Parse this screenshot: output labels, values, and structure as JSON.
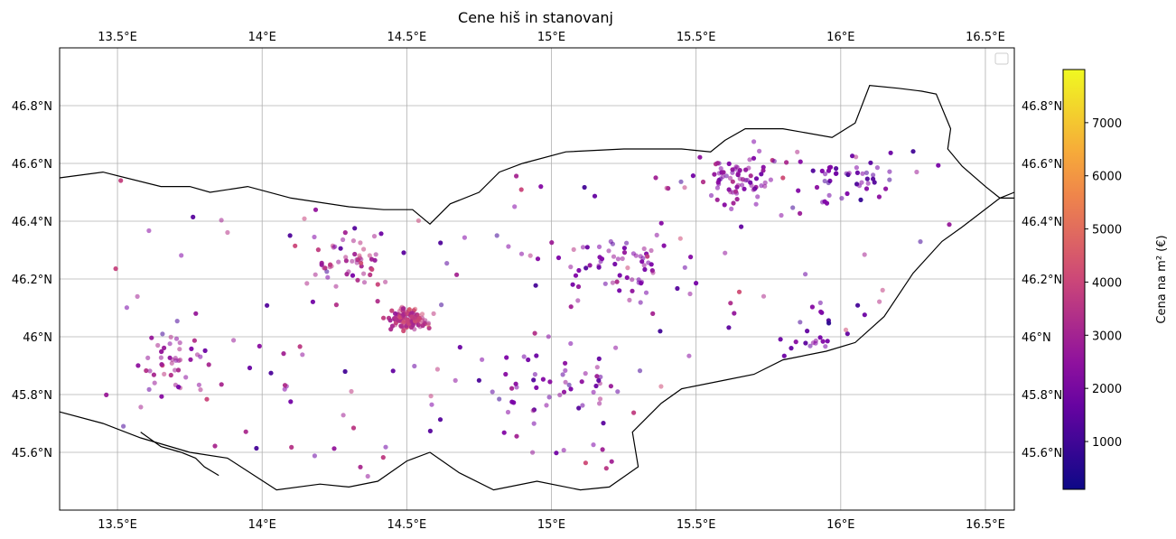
{
  "chart_data": {
    "type": "scatter",
    "title": "Cene hiš in stanovanj",
    "xlabel": "",
    "ylabel": "",
    "xlim": [
      13.3,
      16.6
    ],
    "ylim": [
      45.4,
      47.0
    ],
    "x_ticks": [
      {
        "value": 13.5,
        "label": "13.5°E"
      },
      {
        "value": 14.0,
        "label": "14°E"
      },
      {
        "value": 14.5,
        "label": "14.5°E"
      },
      {
        "value": 15.0,
        "label": "15°E"
      },
      {
        "value": 15.5,
        "label": "15.5°E"
      },
      {
        "value": 16.0,
        "label": "16°E"
      },
      {
        "value": 16.5,
        "label": "16.5°E"
      }
    ],
    "y_ticks": [
      {
        "value": 45.6,
        "label": "45.6°N"
      },
      {
        "value": 45.8,
        "label": "45.8°N"
      },
      {
        "value": 46.0,
        "label": "46°N"
      },
      {
        "value": 46.2,
        "label": "46.2°N"
      },
      {
        "value": 46.4,
        "label": "46.4°N"
      },
      {
        "value": 46.6,
        "label": "46.6°N"
      },
      {
        "value": 46.8,
        "label": "46.8°N"
      }
    ],
    "grid": true,
    "legend": "top-right (empty)",
    "colorbar": {
      "label": "Cena na m² (€)",
      "colormap": "plasma",
      "range": [
        100,
        8000
      ],
      "ticks": [
        {
          "value": 1000,
          "label": "1000"
        },
        {
          "value": 2000,
          "label": "2000"
        },
        {
          "value": 3000,
          "label": "3000"
        },
        {
          "value": 4000,
          "label": "4000"
        },
        {
          "value": 5000,
          "label": "5000"
        },
        {
          "value": 6000,
          "label": "6000"
        },
        {
          "value": 7000,
          "label": "7000"
        }
      ]
    },
    "border_path": [
      [
        13.3,
        46.55
      ],
      [
        13.45,
        46.57
      ],
      [
        13.65,
        46.52
      ],
      [
        13.75,
        46.52
      ],
      [
        13.82,
        46.5
      ],
      [
        13.95,
        46.52
      ],
      [
        14.1,
        46.48
      ],
      [
        14.3,
        46.45
      ],
      [
        14.42,
        46.44
      ],
      [
        14.52,
        46.44
      ],
      [
        14.58,
        46.39
      ],
      [
        14.65,
        46.46
      ],
      [
        14.75,
        46.5
      ],
      [
        14.82,
        46.57
      ],
      [
        14.9,
        46.6
      ],
      [
        15.05,
        46.64
      ],
      [
        15.25,
        46.65
      ],
      [
        15.45,
        46.65
      ],
      [
        15.55,
        46.64
      ],
      [
        15.6,
        46.68
      ],
      [
        15.67,
        46.72
      ],
      [
        15.8,
        46.72
      ],
      [
        15.97,
        46.69
      ],
      [
        16.05,
        46.74
      ],
      [
        16.1,
        46.87
      ],
      [
        16.2,
        46.86
      ],
      [
        16.28,
        46.85
      ],
      [
        16.33,
        46.84
      ],
      [
        16.38,
        46.72
      ],
      [
        16.37,
        46.65
      ],
      [
        16.42,
        46.59
      ],
      [
        16.5,
        46.52
      ],
      [
        16.55,
        46.48
      ],
      [
        16.6,
        46.48
      ]
    ],
    "south_border_path": [
      [
        13.3,
        45.74
      ],
      [
        13.45,
        45.7
      ],
      [
        13.58,
        45.65
      ],
      [
        13.75,
        45.6
      ],
      [
        13.88,
        45.58
      ],
      [
        14.05,
        45.47
      ],
      [
        14.2,
        45.49
      ],
      [
        14.3,
        45.48
      ],
      [
        14.4,
        45.5
      ],
      [
        14.5,
        45.57
      ],
      [
        14.58,
        45.6
      ],
      [
        14.68,
        45.53
      ],
      [
        14.8,
        45.47
      ],
      [
        14.95,
        45.5
      ],
      [
        15.1,
        45.47
      ],
      [
        15.2,
        45.48
      ],
      [
        15.3,
        45.55
      ],
      [
        15.28,
        45.67
      ],
      [
        15.33,
        45.72
      ],
      [
        15.38,
        45.77
      ],
      [
        15.45,
        45.82
      ],
      [
        15.6,
        45.85
      ],
      [
        15.7,
        45.87
      ],
      [
        15.8,
        45.92
      ],
      [
        15.95,
        45.95
      ],
      [
        16.05,
        45.98
      ],
      [
        16.15,
        46.07
      ],
      [
        16.25,
        46.22
      ],
      [
        16.35,
        46.33
      ],
      [
        16.42,
        46.38
      ],
      [
        16.55,
        46.48
      ],
      [
        16.6,
        46.5
      ]
    ],
    "coast_path": [
      [
        13.58,
        45.67
      ],
      [
        13.65,
        45.62
      ],
      [
        13.72,
        45.6
      ],
      [
        13.77,
        45.58
      ],
      [
        13.8,
        45.55
      ],
      [
        13.85,
        45.52
      ]
    ],
    "price_range": [
      300,
      7500
    ]
  }
}
